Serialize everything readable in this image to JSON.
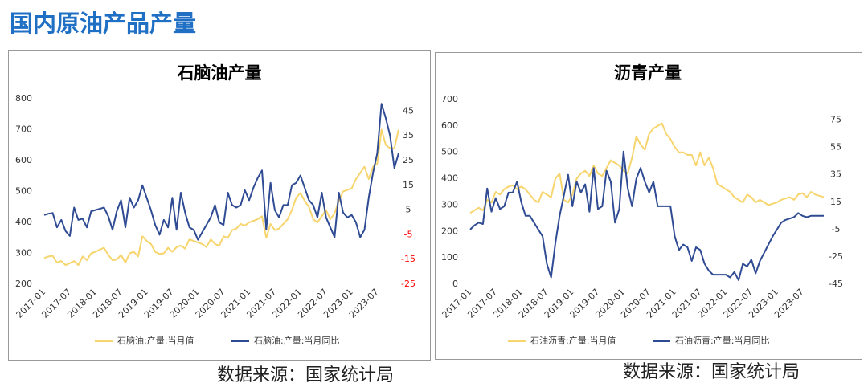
{
  "title": "国内原油产品产量",
  "chart_data": [
    {
      "type": "line",
      "title": "石脑油产量",
      "source": "数据来源：国家统计局",
      "categories": [
        "2017-01",
        null,
        null,
        null,
        null,
        null,
        "2017-07",
        null,
        null,
        null,
        null,
        null,
        "2018-01",
        null,
        null,
        null,
        null,
        null,
        "2018-07",
        null,
        null,
        null,
        null,
        null,
        "2019-01",
        null,
        null,
        null,
        null,
        null,
        "2019-07",
        null,
        null,
        null,
        null,
        null,
        "2020-01",
        null,
        null,
        null,
        null,
        null,
        "2020-07",
        null,
        null,
        null,
        null,
        null,
        "2021-01",
        null,
        null,
        null,
        null,
        null,
        "2021-07",
        null,
        null,
        null,
        null,
        null,
        "2022-01",
        null,
        null,
        null,
        null,
        null,
        "2022-07",
        null,
        null,
        null,
        null,
        null,
        "2023-01",
        null,
        null,
        null,
        null,
        null,
        "2023-07",
        null,
        null,
        null,
        null,
        null
      ],
      "ylim": [
        200,
        800
      ],
      "yticks": [
        200,
        300,
        400,
        500,
        600,
        700,
        800
      ],
      "y2lim": [
        -25,
        50
      ],
      "y2ticks": [
        -25,
        -15,
        -5,
        5,
        15,
        25,
        35,
        45
      ],
      "negative_tick_color": "#ff0000",
      "series": [
        {
          "name": "石脑油:产量:当月值",
          "color": "#f7d56e",
          "values": [
            285,
            290,
            292,
            270,
            275,
            262,
            268,
            275,
            262,
            290,
            278,
            300,
            305,
            312,
            318,
            295,
            278,
            280,
            295,
            270,
            300,
            305,
            290,
            355,
            340,
            330,
            305,
            298,
            300,
            318,
            305,
            320,
            325,
            315,
            345,
            340,
            335,
            330,
            320,
            345,
            330,
            325,
            355,
            350,
            375,
            380,
            395,
            390,
            400,
            405,
            410,
            420,
            350,
            395,
            375,
            380,
            395,
            410,
            440,
            480,
            495,
            470,
            450,
            410,
            400,
            420,
            440,
            410,
            430,
            470,
            500,
            505,
            510,
            540,
            560,
            580,
            540,
            580,
            590,
            700,
            650,
            640,
            640,
            700
          ]
        },
        {
          "name": "石脑油:产量:当月同比",
          "color": "#2f4b93",
          "axis": "y2",
          "values": [
            3,
            3.5,
            3.8,
            -2,
            1,
            -3.5,
            -5.5,
            6,
            1,
            1.5,
            -2,
            4.5,
            5,
            5.5,
            6,
            2.5,
            -3,
            4.5,
            9,
            -2,
            10,
            6,
            9,
            15,
            10,
            5,
            -1,
            -5,
            1,
            -2,
            10,
            -3,
            12,
            4,
            -2,
            -3,
            -7,
            -4,
            -1,
            2,
            7,
            0,
            -1,
            12,
            7,
            6,
            7,
            13,
            9,
            14,
            18,
            21,
            -3,
            16,
            5,
            2,
            7,
            7,
            15,
            16,
            19,
            14,
            9,
            7,
            2,
            12,
            2,
            -2,
            -6,
            12,
            4,
            2,
            3,
            0,
            -6,
            -3,
            10,
            20,
            28,
            48,
            42,
            35,
            22,
            28
          ]
        }
      ]
    },
    {
      "type": "line",
      "title": "沥青产量",
      "source": "数据来源：国家统计局",
      "categories": [
        "2017-01",
        null,
        null,
        null,
        null,
        null,
        "2017-07",
        null,
        null,
        null,
        null,
        null,
        "2018-01",
        null,
        null,
        null,
        null,
        null,
        "2018-07",
        null,
        null,
        null,
        null,
        null,
        "2019-01",
        null,
        null,
        null,
        null,
        null,
        "2019-07",
        null,
        null,
        null,
        null,
        null,
        "2020-01",
        null,
        null,
        null,
        null,
        null,
        "2020-07",
        null,
        null,
        null,
        null,
        null,
        "2021-01",
        null,
        null,
        null,
        null,
        null,
        "2021-07",
        null,
        null,
        null,
        null,
        null,
        "2022-01",
        null,
        null,
        null,
        null,
        null,
        "2022-07",
        null,
        null,
        null,
        null,
        null,
        "2023-01",
        null,
        null,
        null,
        null,
        null,
        "2023-07",
        null,
        null,
        null,
        null,
        null
      ],
      "ylim": [
        0,
        700
      ],
      "yticks": [
        0,
        100,
        200,
        300,
        400,
        500,
        600,
        700
      ],
      "y2lim": [
        -45,
        90
      ],
      "y2ticks": [
        -45,
        -25,
        -5,
        15,
        35,
        55,
        75
      ],
      "series": [
        {
          "name": "石油沥青:产量:当月值",
          "color": "#f7d56e",
          "values": [
            270,
            280,
            290,
            280,
            320,
            310,
            350,
            340,
            360,
            370,
            375,
            360,
            370,
            360,
            340,
            320,
            310,
            350,
            340,
            330,
            400,
            420,
            320,
            310,
            340,
            400,
            420,
            430,
            410,
            450,
            420,
            410,
            440,
            470,
            460,
            450,
            430,
            420,
            480,
            560,
            530,
            510,
            570,
            590,
            600,
            610,
            570,
            550,
            520,
            500,
            500,
            490,
            490,
            450,
            500,
            450,
            480,
            440,
            380,
            370,
            360,
            350,
            330,
            320,
            310,
            340,
            330,
            310,
            320,
            310,
            300,
            305,
            310,
            320,
            325,
            330,
            320,
            340,
            345,
            330,
            350,
            340,
            335,
            330
          ]
        },
        {
          "name": "石油沥青:产量:当月同比",
          "color": "#2f4b93",
          "axis": "y2",
          "values": [
            -5,
            -2,
            0,
            -1,
            25,
            8,
            18,
            10,
            12,
            22,
            22,
            30,
            15,
            5,
            5,
            0,
            -5,
            -10,
            -30,
            -40,
            -15,
            5,
            20,
            35,
            12,
            30,
            22,
            28,
            8,
            40,
            10,
            12,
            38,
            30,
            0,
            10,
            52,
            25,
            12,
            32,
            40,
            30,
            22,
            30,
            12,
            12,
            12,
            12,
            -10,
            -20,
            -16,
            -18,
            -28,
            -18,
            -20,
            -30,
            -35,
            -38,
            -38,
            -38,
            -38,
            -40,
            -36,
            -42,
            -30,
            -32,
            -27,
            -37,
            -28,
            -22,
            -16,
            -10,
            -5,
            0,
            2,
            3,
            4,
            7,
            5,
            4,
            5,
            5,
            5,
            5
          ]
        }
      ]
    }
  ]
}
